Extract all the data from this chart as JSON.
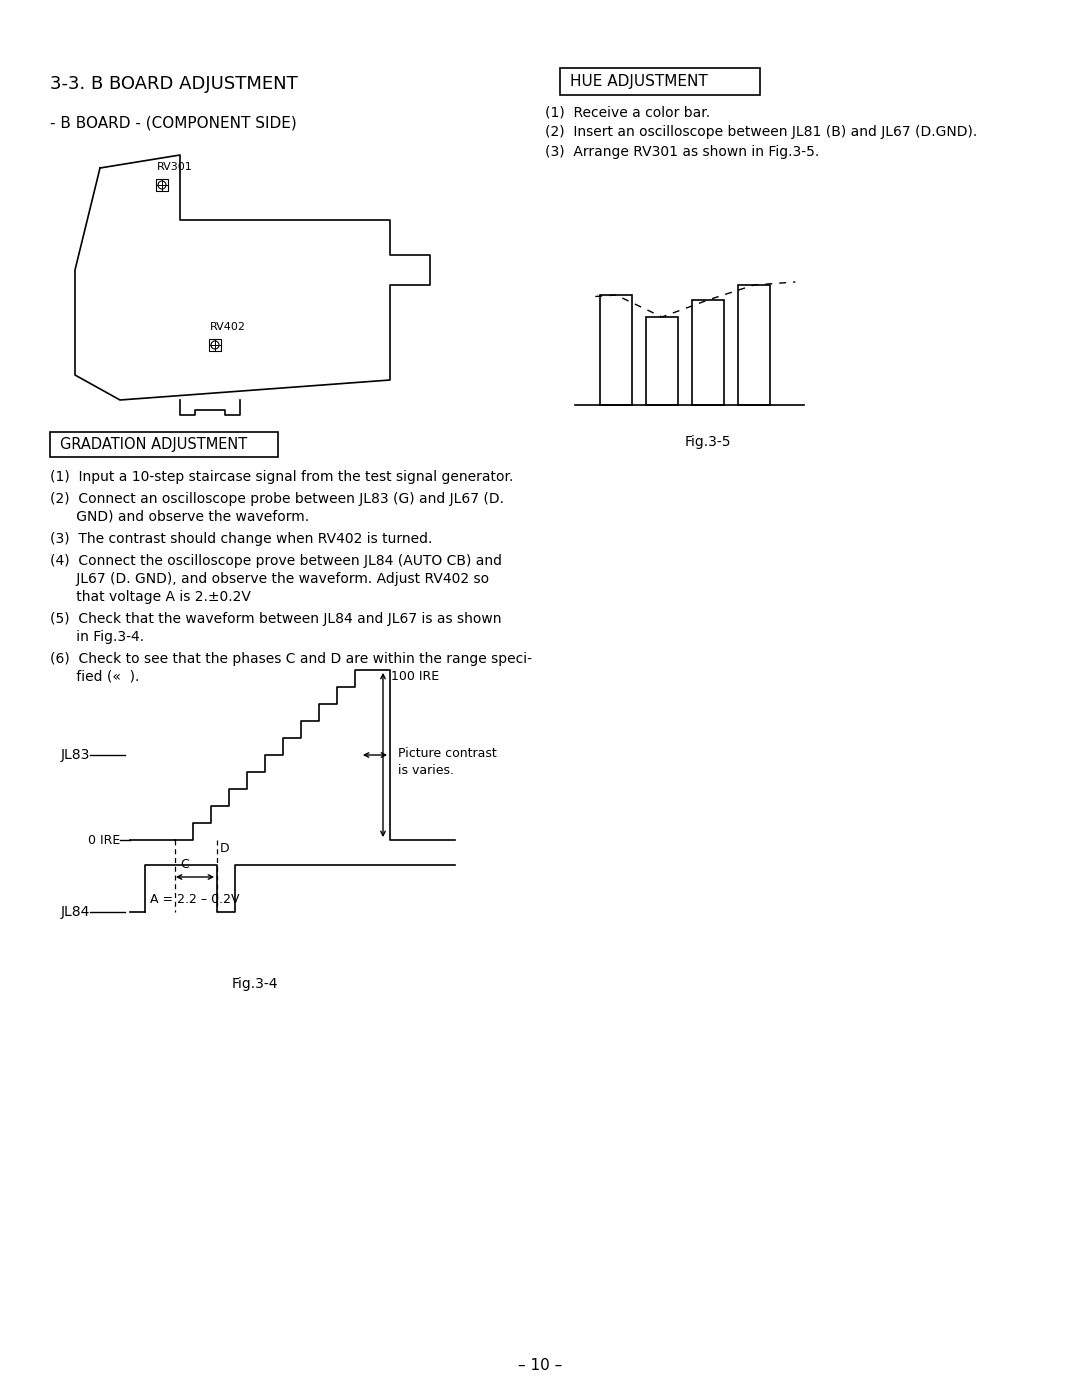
{
  "title_main": "3-3. B BOARD ADJUSTMENT",
  "subtitle_board": "- B BOARD - (COMPONENT SIDE)",
  "hue_title": "HUE ADJUSTMENT",
  "hue_steps": [
    "(1)  Receive a color bar.",
    "(2)  Insert an oscilloscope between JL81 (B) and JL67 (D.GND).",
    "(3)  Arrange RV301 as shown in Fig.3-5."
  ],
  "fig35_label": "Fig.3-5",
  "gradation_title": "GRADATION ADJUSTMENT",
  "grad_steps_lines": [
    [
      "(1)  Input a 10-step staircase signal from the test signal generator."
    ],
    [
      "(2)  Connect an oscilloscope probe between JL83 (G) and JL67 (D.",
      "      GND) and observe the waveform."
    ],
    [
      "(3)  The contrast should change when RV402 is turned."
    ],
    [
      "(4)  Connect the oscilloscope prove between JL84 (AUTO CB) and",
      "      JL67 (D. GND), and observe the waveform. Adjust RV402 so",
      "      that voltage A is 2.±0.2V"
    ],
    [
      "(5)  Check that the waveform between JL84 and JL67 is as shown",
      "      in Fig.3-4."
    ],
    [
      "(6)  Check to see that the phases C and D are within the range speci-",
      "      fied («  )."
    ]
  ],
  "fig34_label": "Fig.3-4",
  "page_number": "– 10 –",
  "bg_color": "#ffffff",
  "fg_color": "#000000"
}
